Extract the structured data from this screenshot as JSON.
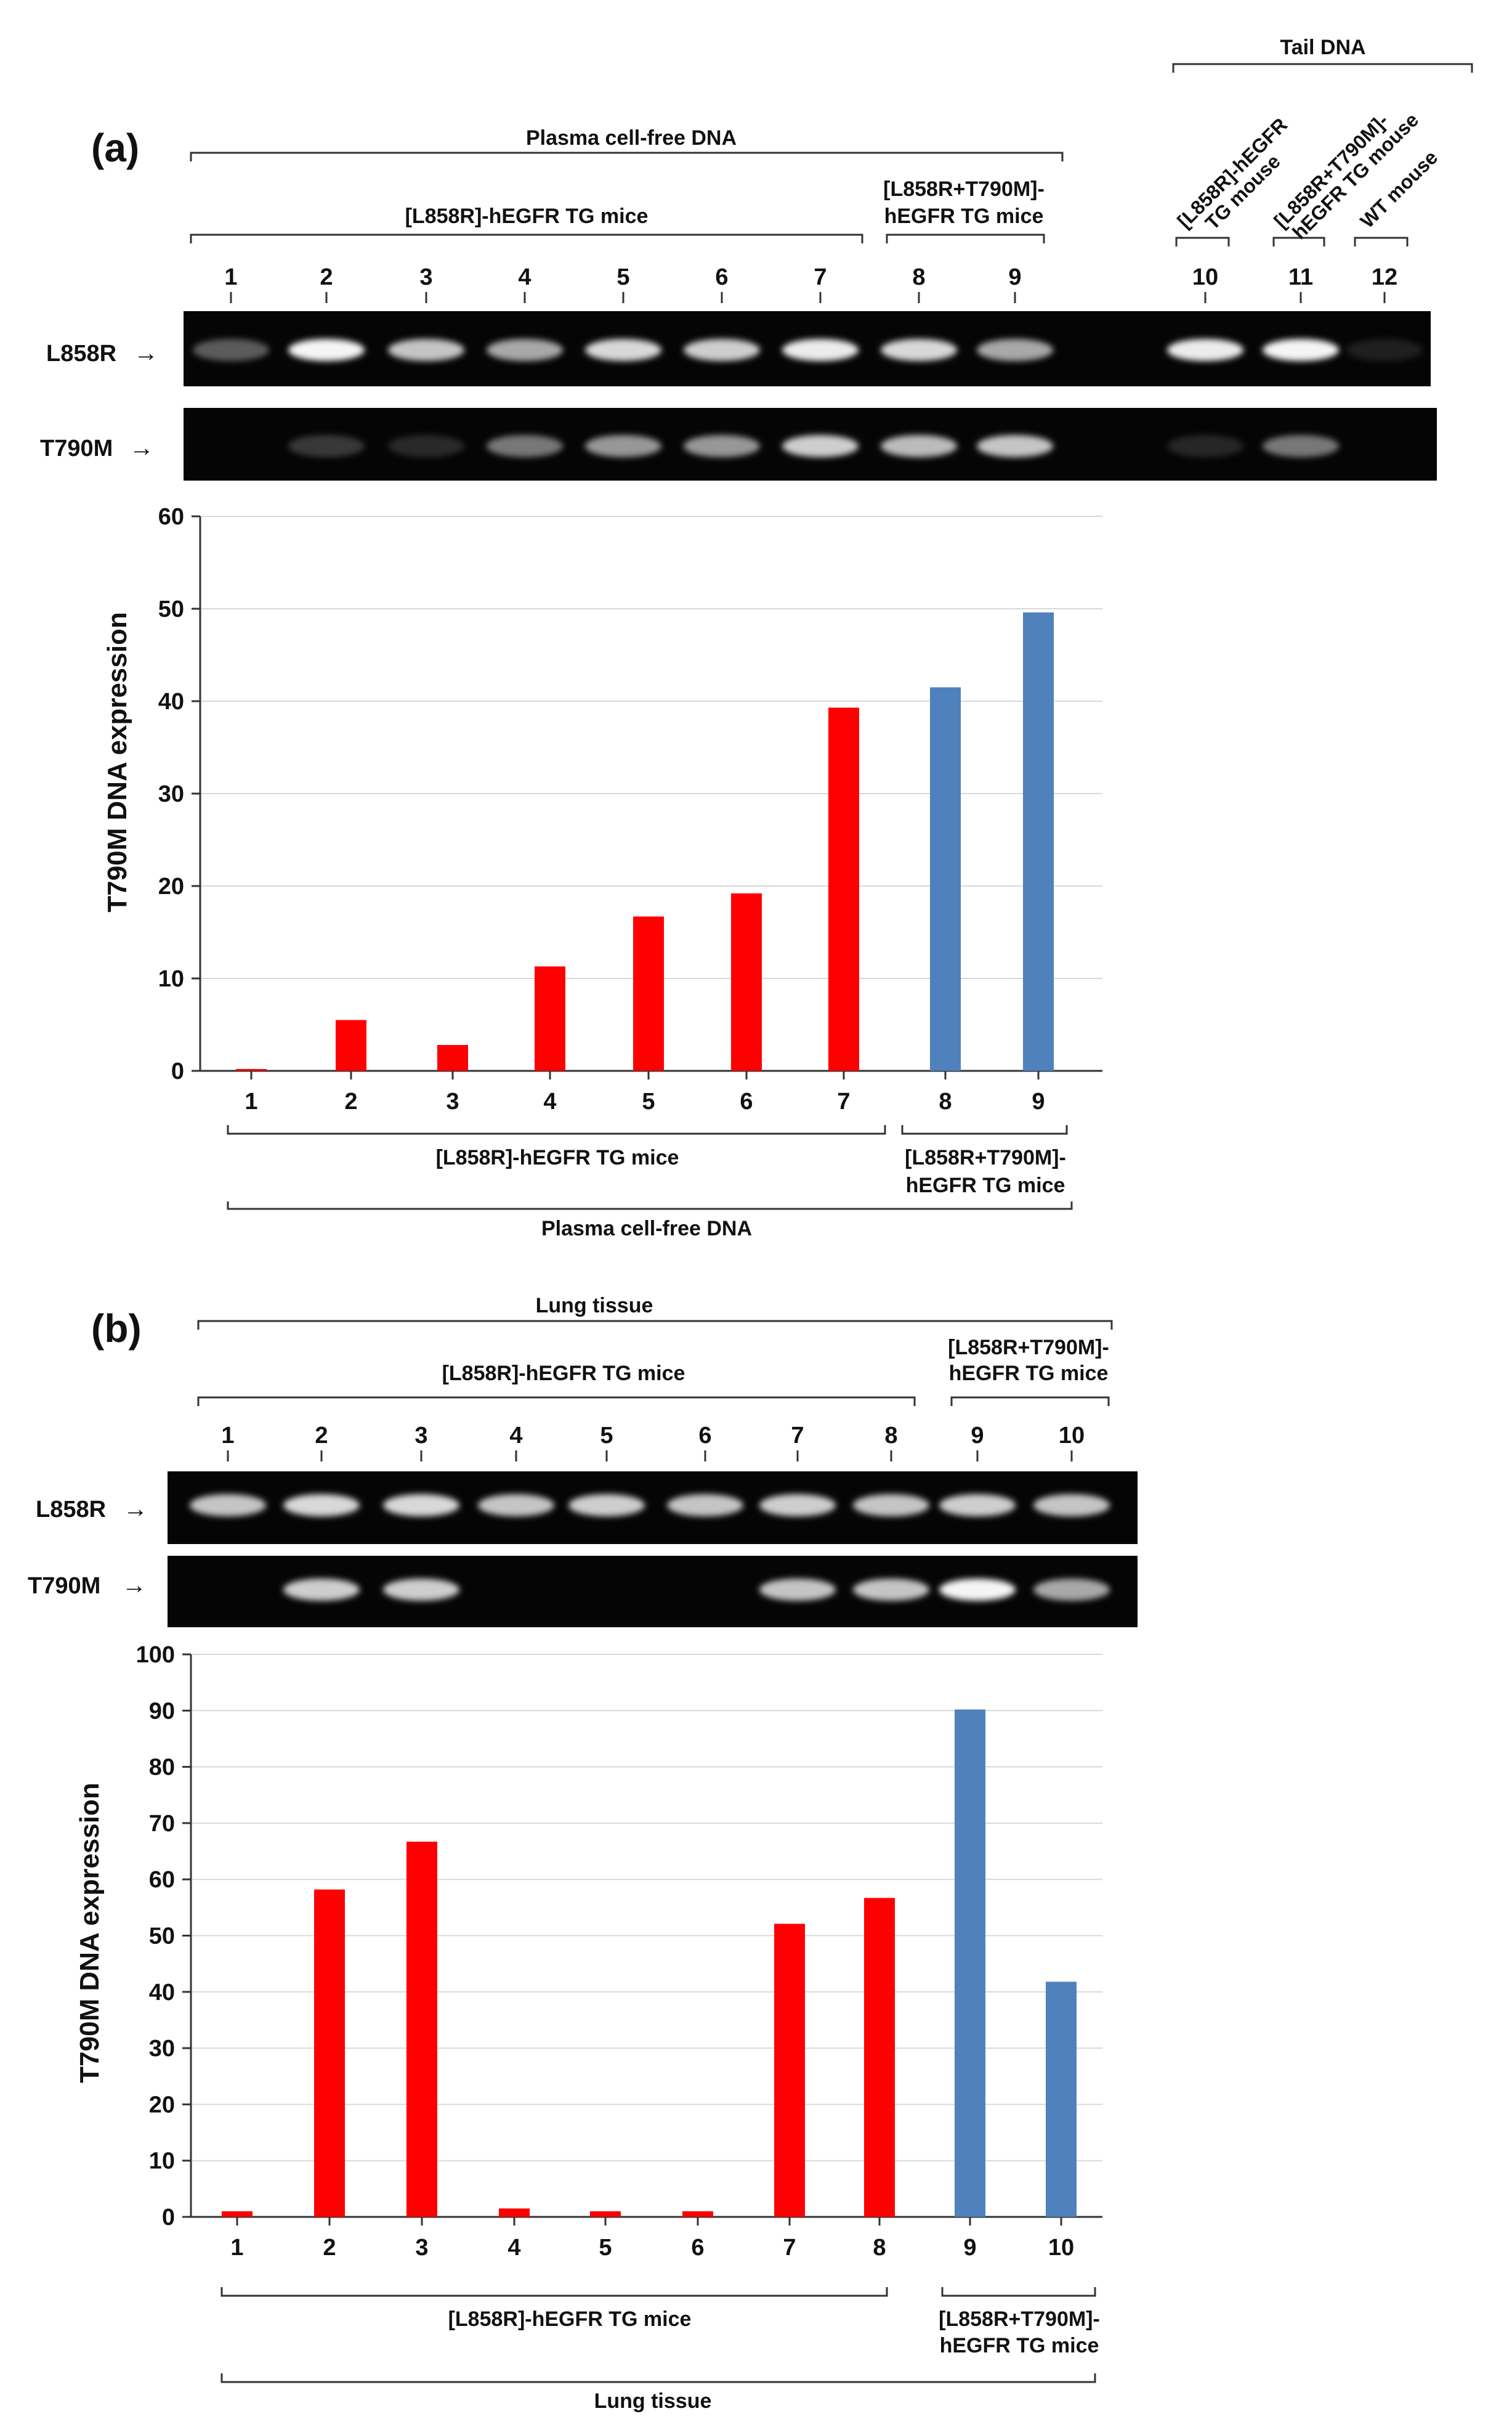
{
  "panels": [
    {
      "id": "a",
      "panel_label": "(a)",
      "gel_groups": {
        "outer": "Plasma cell-free DNA",
        "tg_l858r": "[L858R]-hEGFR TG mice",
        "tg_dual_line1": "[L858R+T790M]-",
        "tg_dual_line2": "hEGFR TG mice",
        "tail": "Tail DNA",
        "tail_sub": [
          {
            "line1": "[L858R]-hEGFR",
            "line2": "TG mouse"
          },
          {
            "line1": "[L858R+T790M]-",
            "line2": "hEGFR TG mouse"
          },
          {
            "line1": "WT mouse",
            "line2": ""
          }
        ]
      },
      "lanes": [
        "1",
        "2",
        "3",
        "4",
        "5",
        "6",
        "7",
        "8",
        "9",
        "10",
        "11",
        "12"
      ],
      "gel_rows": [
        {
          "label": "L858R",
          "arrow": "→",
          "bands": [
            0.35,
            0.95,
            0.7,
            0.6,
            0.8,
            0.75,
            0.9,
            0.8,
            0.6,
            0.9,
            0.95,
            0.05
          ]
        },
        {
          "label": "T790M",
          "arrow": "→",
          "bands": [
            0.0,
            0.2,
            0.12,
            0.45,
            0.55,
            0.55,
            0.75,
            0.65,
            0.7,
            0.1,
            0.45,
            0.0
          ]
        }
      ],
      "axis_bottom_groups": {
        "group1": "[L858R]-hEGFR TG mice",
        "group2_line1": "[L858R+T790M]-",
        "group2_line2": "hEGFR TG mice",
        "outer": "Plasma cell-free DNA"
      }
    },
    {
      "id": "b",
      "panel_label": "(b)",
      "gel_groups": {
        "outer": "Lung tissue",
        "tg_l858r": "[L858R]-hEGFR TG mice",
        "tg_dual_line1": "[L858R+T790M]-",
        "tg_dual_line2": "hEGFR TG mice"
      },
      "lanes": [
        "1",
        "2",
        "3",
        "4",
        "5",
        "6",
        "7",
        "8",
        "9",
        "10"
      ],
      "gel_rows": [
        {
          "label": "L858R",
          "arrow": "→",
          "bands": [
            0.7,
            0.8,
            0.8,
            0.7,
            0.75,
            0.7,
            0.75,
            0.7,
            0.75,
            0.7
          ]
        },
        {
          "label": "T790M",
          "arrow": "→",
          "bands": [
            0.0,
            0.75,
            0.75,
            0.0,
            0.0,
            0.0,
            0.7,
            0.7,
            0.95,
            0.6
          ]
        }
      ],
      "axis_bottom_groups": {
        "group1": "[L858R]-hEGFR TG mice",
        "group2_line1": "[L858R+T790M]-",
        "group2_line2": "hEGFR TG mice",
        "outer": "Lung tissue"
      }
    }
  ],
  "chart_data": [
    {
      "type": "bar",
      "title": "",
      "categories": [
        "1",
        "2",
        "3",
        "4",
        "5",
        "6",
        "7",
        "8",
        "9"
      ],
      "values": [
        0.2,
        5.5,
        2.8,
        11.3,
        16.7,
        19.2,
        39.3,
        41.5,
        49.6
      ],
      "colors": [
        "#ff0000",
        "#ff0000",
        "#ff0000",
        "#ff0000",
        "#ff0000",
        "#ff0000",
        "#ff0000",
        "#4f81bd",
        "#4f81bd"
      ],
      "ylabel": "T790M DNA expression",
      "xlabel": "",
      "ylim": [
        0,
        60
      ],
      "yticks": [
        0,
        10,
        20,
        30,
        40,
        50,
        60
      ],
      "grid": true
    },
    {
      "type": "bar",
      "title": "",
      "categories": [
        "1",
        "2",
        "3",
        "4",
        "5",
        "6",
        "7",
        "8",
        "9",
        "10"
      ],
      "values": [
        1.0,
        58.2,
        66.7,
        1.5,
        1.0,
        1.0,
        52.1,
        56.7,
        90.2,
        41.8
      ],
      "colors": [
        "#ff0000",
        "#ff0000",
        "#ff0000",
        "#ff0000",
        "#ff0000",
        "#ff0000",
        "#ff0000",
        "#ff0000",
        "#4f81bd",
        "#4f81bd"
      ],
      "ylabel": "T790M DNA expression",
      "xlabel": "",
      "ylim": [
        0,
        100
      ],
      "yticks": [
        0,
        10,
        20,
        30,
        40,
        50,
        60,
        70,
        80,
        90,
        100
      ],
      "grid": true
    }
  ]
}
